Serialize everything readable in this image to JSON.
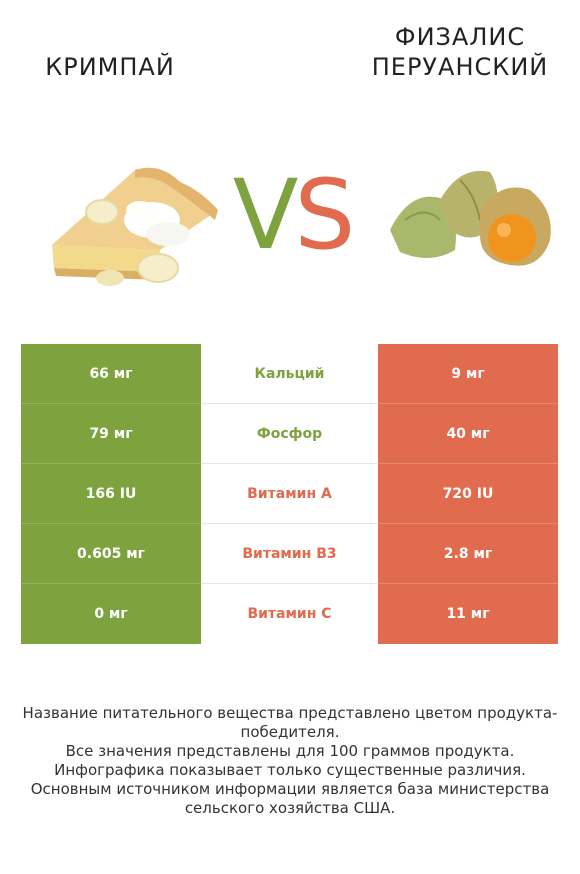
{
  "header": {
    "left_title": "Кримпай",
    "right_title": "Физалис перуанский",
    "vs_v": "V",
    "vs_s": "S"
  },
  "colors": {
    "left_accent": "#7ea23e",
    "right_accent": "#e06b4e"
  },
  "rows": [
    {
      "left": "66 мг",
      "nutrient": "Кальций",
      "right": "9 мг",
      "winner": "left"
    },
    {
      "left": "79 мг",
      "nutrient": "Фосфор",
      "right": "40 мг",
      "winner": "left"
    },
    {
      "left": "166 IU",
      "nutrient": "Витамин A",
      "right": "720 IU",
      "winner": "right"
    },
    {
      "left": "0.605 мг",
      "nutrient": "Витамин B3",
      "right": "2.8 мг",
      "winner": "right"
    },
    {
      "left": "0 мг",
      "nutrient": "Витамин C",
      "right": "11 мг",
      "winner": "right"
    }
  ],
  "footer": {
    "line1": "Название питательного вещества представлено цветом продукта-победителя.",
    "line2": "Все значения представлены для 100 граммов продукта.",
    "line3": "Инфографика показывает только существенные различия.",
    "line4": "Основным источником информации является база министерства сельского хозяйства США."
  }
}
